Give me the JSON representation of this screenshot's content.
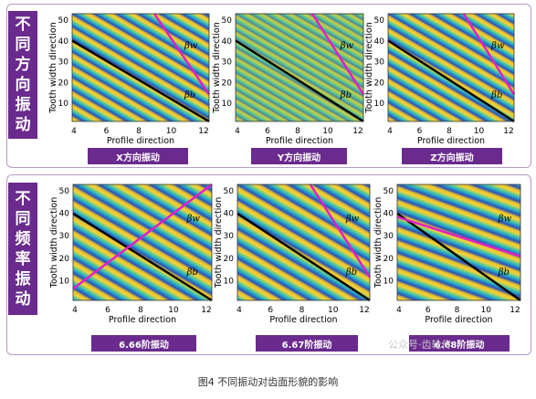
{
  "rows": [
    {
      "label": [
        "不",
        "同",
        "方",
        "向",
        "振",
        "动"
      ],
      "panels": [
        {
          "tag": "X方向振动",
          "xlabel": "Profile direction",
          "ylabel": "Tooth width direction",
          "stripe_ang": -25,
          "stripe_period": 12,
          "line2": "magenta"
        },
        {
          "tag": "Y方向振动",
          "xlabel": "Profile direction",
          "ylabel": "Tooth width direction",
          "stripe_ang": -25,
          "stripe_period": 8,
          "line2": "magenta"
        },
        {
          "tag": "Z方向振动",
          "xlabel": "Profile direction",
          "ylabel": "Tooth width direction",
          "stripe_ang": -25,
          "stripe_period": 12,
          "line2": "magenta"
        }
      ]
    },
    {
      "label": [
        "不",
        "同",
        "频",
        "率",
        "振",
        "动"
      ],
      "panels": [
        {
          "tag": "6.66阶振动",
          "xlabel": "Profile direction",
          "ylabel": "Tooth width direction",
          "stripe_ang": -25,
          "stripe_period": 14,
          "line2": "magenta"
        },
        {
          "tag": "6.67阶振动",
          "xlabel": "Profile direction",
          "ylabel": "Tooth width direction",
          "stripe_ang": -25,
          "stripe_period": 14,
          "line2": "magenta"
        },
        {
          "tag": "6.68阶振动",
          "xlabel": "Profile direction",
          "ylabel": "Tooth width direction",
          "stripe_ang": -25,
          "stripe_period": 14,
          "line2": "magenta"
        }
      ]
    }
  ],
  "xticks": [
    "4",
    "6",
    "8",
    "10",
    "12"
  ],
  "yticks": [
    "10",
    "20",
    "30",
    "40",
    "50"
  ],
  "beta_w": "βw",
  "beta_b": "βb",
  "caption": "图4 不同振动对齿面形貌的影响",
  "watermark": "公众号·齿轮传"
}
